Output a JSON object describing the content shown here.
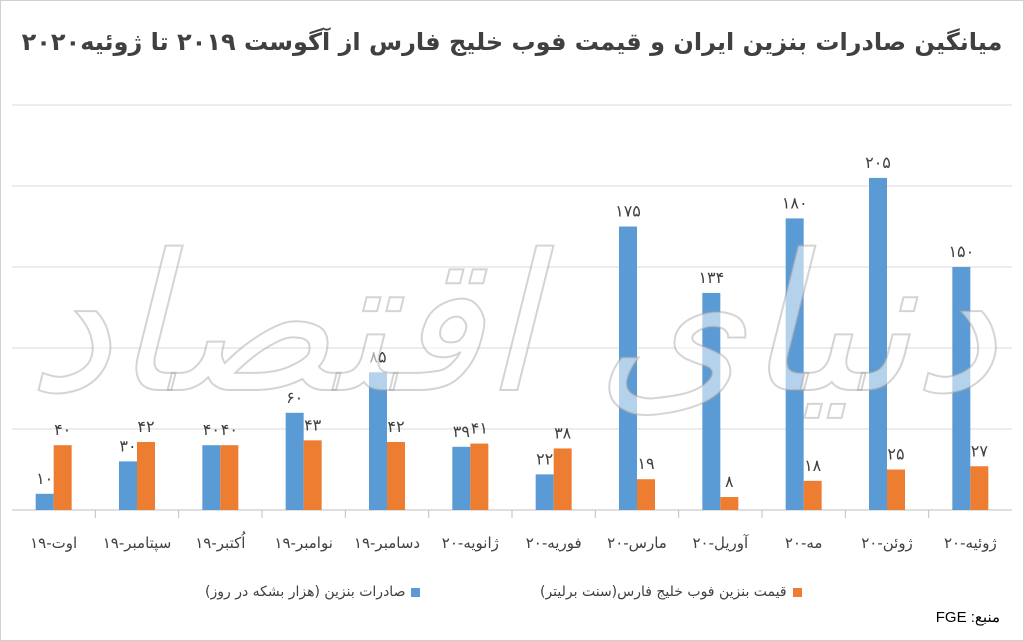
{
  "chart_data": {
    "type": "bar",
    "title": "میانگین صادرات بنزین ایران و قیمت فوب خلیج فارس از آگوست ۲۰۱۹ تا ژوئیه۲۰۲۰",
    "categories": [
      "اوت-۱۹",
      "سپتامبر-۱۹",
      "اُکتبر-۱۹",
      "نوامبر-۱۹",
      "دسامبر-۱۹",
      "ژانویه-۲۰",
      "فوریه-۲۰",
      "مارس-۲۰",
      "آوریل-۲۰",
      "مه-۲۰",
      "ژوئن-۲۰",
      "ژوئیه-۲۰"
    ],
    "series": [
      {
        "name": "صادرات بنزین (هزار بشکه در روز)",
        "color": "#5B9BD5",
        "values": [
          10,
          30,
          40,
          60,
          85,
          39,
          22,
          175,
          134,
          180,
          205,
          150
        ],
        "labels": [
          "۱۰",
          "۳۰",
          "۴۰",
          "۶۰",
          "۸۵",
          "۳۹",
          "۲۲",
          "۱۷۵",
          "۱۳۴",
          "۱۸۰",
          "۲۰۵",
          "۱۵۰"
        ]
      },
      {
        "name": "قیمت بنزین فوب خلیج فارس(سنت برلیتر)",
        "color": "#ED7D31",
        "values": [
          40,
          42,
          40,
          43,
          42,
          41,
          38,
          19,
          8,
          18,
          25,
          27
        ],
        "labels": [
          "۴۰",
          "۴۲",
          "۴۰",
          "۴۳",
          "۴۲",
          "۴۱",
          "۳۸",
          "۱۹",
          "۸",
          "۱۸",
          "۲۵",
          "۲۷"
        ]
      }
    ],
    "ylim": [
      0,
      250
    ],
    "grid": true,
    "legend_position": "bottom"
  },
  "source_label": "منبع: FGE",
  "watermark": "دنیای اقتصاد"
}
